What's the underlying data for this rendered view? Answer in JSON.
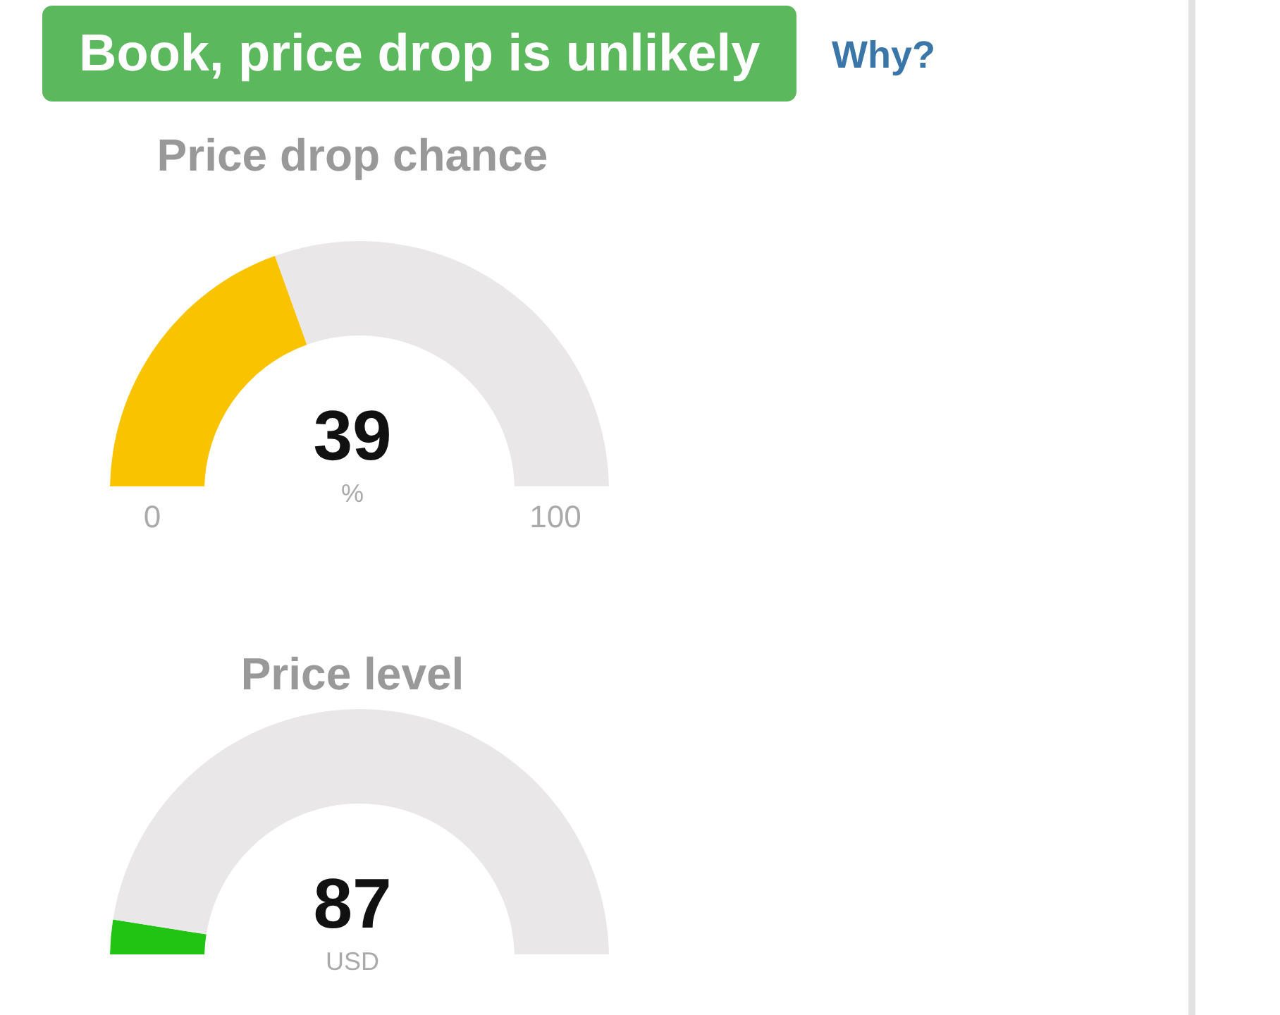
{
  "chart_data": [
    {
      "type": "other",
      "title": "Book, price drop is unlikely",
      "annotations": [
        "Why?"
      ]
    },
    {
      "type": "donut",
      "title": "Price drop chance",
      "categories": [
        null,
        null
      ],
      "values": [
        39,
        61
      ],
      "colors": [
        "#f9c300",
        "#e9e7e8"
      ],
      "annotations": [
        "39",
        "%",
        "0",
        "100"
      ]
    },
    {
      "type": "donut",
      "title": "Price level",
      "categories": [
        null,
        null
      ],
      "values": [
        5,
        95
      ],
      "colors": [
        "#22c414",
        "#e9e7e8"
      ],
      "annotations": [
        "87",
        "USD"
      ]
    }
  ]
}
